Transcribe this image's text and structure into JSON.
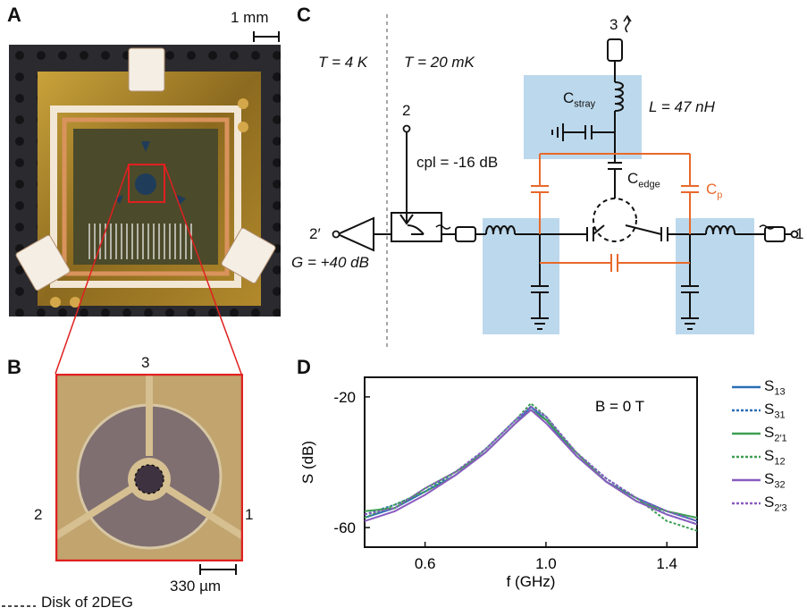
{
  "panel_a": {
    "label": "A",
    "scale_bar": "1 mm"
  },
  "panel_b": {
    "label": "B",
    "port_3": "3",
    "port_2": "2",
    "port_1": "1",
    "scale_bar": "330 µm",
    "legend": "Disk of 2DEG"
  },
  "panel_c": {
    "label": "C",
    "temp_4k": "T = 4 K",
    "temp_20mk": "T = 20 mK",
    "port_2": "2",
    "port_2prime": "2′",
    "port_1": "1",
    "port_3": "3",
    "coupler": "cpl = -16 dB",
    "amplifier_gain": "G = +40 dB",
    "inductance": "L = 47 nH",
    "c_stray": "C",
    "c_stray_sub": "stray",
    "c_edge": "C",
    "c_edge_sub": "edge",
    "c_p": "C",
    "c_p_sub": "p",
    "colors": {
      "parasitic": "#e8692b",
      "shade": "#b9d7ea"
    }
  },
  "panel_d": {
    "label": "D",
    "annotation": "B = 0 T",
    "legend": [
      {
        "name": "S",
        "sub": "13",
        "color": "#2a6fb5",
        "dash": false
      },
      {
        "name": "S",
        "sub": "31",
        "color": "#2a6fb5",
        "dash": true
      },
      {
        "name": "S",
        "sub": "2′1",
        "color": "#3f9e53",
        "dash": false
      },
      {
        "name": "S",
        "sub": "12",
        "color": "#3f9e53",
        "dash": true
      },
      {
        "name": "S",
        "sub": "32",
        "color": "#8a5cbf",
        "dash": false
      },
      {
        "name": "S",
        "sub": "2′3",
        "color": "#8a5cbf",
        "dash": true
      }
    ]
  },
  "chart_data": {
    "type": "line",
    "xlabel": "f (GHz)",
    "ylabel": "S (dB)",
    "xlim": [
      0.4,
      1.5
    ],
    "ylim": [
      -66,
      -14
    ],
    "xticks": [
      0.6,
      1.0,
      1.4
    ],
    "xtick_labels": [
      "0.6",
      "1.0",
      "1.4"
    ],
    "yticks": [
      -20,
      -60
    ],
    "ytick_labels": [
      "-20",
      "-60"
    ],
    "x": [
      0.4,
      0.5,
      0.6,
      0.7,
      0.8,
      0.9,
      0.95,
      1.0,
      1.1,
      1.2,
      1.3,
      1.4,
      1.5
    ],
    "series": [
      {
        "name": "S13",
        "values": [
          -57,
          -54,
          -49,
          -44,
          -37,
          -28,
          -23,
          -27,
          -38,
          -46,
          -51,
          -55,
          -58
        ]
      },
      {
        "name": "S31",
        "values": [
          -56,
          -53,
          -49,
          -43,
          -36,
          -27,
          -23,
          -26,
          -37,
          -45,
          -51,
          -56,
          -59
        ]
      },
      {
        "name": "S2′1",
        "values": [
          -55,
          -54,
          -48,
          -43,
          -37,
          -28,
          -24,
          -27,
          -37,
          -46,
          -52,
          -55,
          -57
        ]
      },
      {
        "name": "S12",
        "values": [
          -57,
          -53,
          -49,
          -44,
          -36,
          -27,
          -22,
          -26,
          -38,
          -46,
          -51,
          -58,
          -61
        ]
      },
      {
        "name": "S32",
        "values": [
          -58,
          -55,
          -50,
          -44,
          -37,
          -28,
          -24,
          -28,
          -38,
          -46,
          -52,
          -56,
          -59
        ]
      },
      {
        "name": "S2′3",
        "values": [
          -56,
          -54,
          -48,
          -43,
          -36,
          -27,
          -23,
          -26,
          -37,
          -45,
          -51,
          -55,
          -58
        ]
      }
    ]
  }
}
